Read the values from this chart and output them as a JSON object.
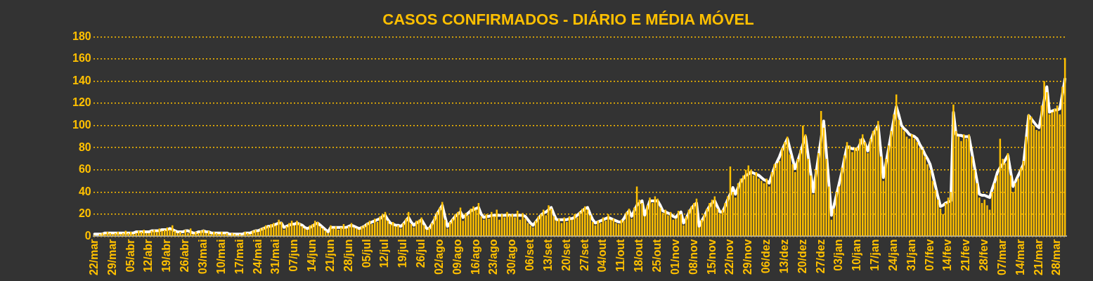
{
  "chart_data": {
    "type": "bar",
    "title": "CASOS CONFIRMADOS - DIÁRIO E MÉDIA MÓVEL",
    "categories": [
      "22/mar",
      null,
      null,
      null,
      null,
      null,
      null,
      "29/mar",
      null,
      null,
      null,
      null,
      null,
      null,
      "05/abr",
      null,
      null,
      null,
      null,
      null,
      null,
      "12/abr",
      null,
      null,
      null,
      null,
      null,
      null,
      "19/abr",
      null,
      null,
      null,
      null,
      null,
      null,
      "26/abr",
      null,
      null,
      null,
      null,
      null,
      null,
      "03/mai",
      null,
      null,
      null,
      null,
      null,
      null,
      "10/mai",
      null,
      null,
      null,
      null,
      null,
      null,
      "17/mai",
      null,
      null,
      null,
      null,
      null,
      null,
      "24/mai",
      null,
      null,
      null,
      null,
      null,
      null,
      "31/mai",
      null,
      null,
      null,
      null,
      null,
      null,
      "07/jun",
      null,
      null,
      null,
      null,
      null,
      null,
      "14/jun",
      null,
      null,
      null,
      null,
      null,
      null,
      "21/jun",
      null,
      null,
      null,
      null,
      null,
      null,
      "28/jun",
      null,
      null,
      null,
      null,
      null,
      null,
      "05/jul",
      null,
      null,
      null,
      null,
      null,
      null,
      "12/jul",
      null,
      null,
      null,
      null,
      null,
      null,
      "19/jul",
      null,
      null,
      null,
      null,
      null,
      null,
      "26/jul",
      null,
      null,
      null,
      null,
      null,
      null,
      "02/ago",
      null,
      null,
      null,
      null,
      null,
      null,
      "09/ago",
      null,
      null,
      null,
      null,
      null,
      null,
      "16/ago",
      null,
      null,
      null,
      null,
      null,
      null,
      "23/ago",
      null,
      null,
      null,
      null,
      null,
      null,
      "30/ago",
      null,
      null,
      null,
      null,
      null,
      null,
      "06/set",
      null,
      null,
      null,
      null,
      null,
      null,
      "13/set",
      null,
      null,
      null,
      null,
      null,
      null,
      "20/set",
      null,
      null,
      null,
      null,
      null,
      null,
      "27/set",
      null,
      null,
      null,
      null,
      null,
      null,
      "04/out",
      null,
      null,
      null,
      null,
      null,
      null,
      "11/out",
      null,
      null,
      null,
      null,
      null,
      null,
      "18/out",
      null,
      null,
      null,
      null,
      null,
      null,
      "25/out",
      null,
      null,
      null,
      null,
      null,
      null,
      "01/nov",
      null,
      null,
      null,
      null,
      null,
      null,
      "08/nov",
      null,
      null,
      null,
      null,
      null,
      null,
      "15/nov",
      null,
      null,
      null,
      null,
      null,
      null,
      "22/nov",
      null,
      null,
      null,
      null,
      null,
      null,
      "29/nov",
      null,
      null,
      null,
      null,
      null,
      null,
      "06/dez",
      null,
      null,
      null,
      null,
      null,
      null,
      "13/dez",
      null,
      null,
      null,
      null,
      null,
      null,
      "20/dez",
      null,
      null,
      null,
      null,
      null,
      null,
      "27/dez",
      null,
      null,
      null,
      null,
      null,
      null,
      "03/jan",
      null,
      null,
      null,
      null,
      null,
      null,
      "10/jan",
      null,
      null,
      null,
      null,
      null,
      null,
      "17/jan",
      null,
      null,
      null,
      null,
      null,
      null,
      "24/jan",
      null,
      null,
      null,
      null,
      null,
      null,
      "31/jan",
      null,
      null,
      null,
      null,
      null,
      null,
      "07/fev",
      null,
      null,
      null,
      null,
      null,
      null,
      "14/fev",
      null,
      null,
      null,
      null,
      null,
      null,
      "21/fev",
      null,
      null,
      null,
      null,
      null,
      null,
      "28/fev",
      null,
      null,
      null,
      null,
      null,
      null,
      "07/mar",
      null,
      null,
      null,
      null,
      null,
      null,
      "14/mar",
      null,
      null,
      null,
      null,
      null,
      null,
      "21/mar",
      null,
      null,
      null,
      null,
      null,
      null,
      "28/mar",
      null,
      null,
      null
    ],
    "series": [
      {
        "color": "#ffc000",
        "values": [
          1,
          0,
          2,
          3,
          2,
          4,
          3,
          2,
          3,
          4,
          2,
          3,
          5,
          3,
          4,
          2,
          3,
          5,
          4,
          6,
          3,
          3,
          5,
          6,
          4,
          7,
          5,
          6,
          8,
          6,
          10,
          5,
          3,
          4,
          2,
          6,
          3,
          7,
          2,
          4,
          3,
          5,
          6,
          3,
          5,
          2,
          4,
          3,
          2,
          4,
          2,
          3,
          1,
          3,
          2,
          1,
          2,
          1,
          4,
          3,
          2,
          5,
          6,
          4,
          7,
          8,
          10,
          9,
          11,
          12,
          10,
          15,
          13,
          6,
          9,
          12,
          14,
          10,
          14,
          12,
          9,
          7,
          6,
          10,
          11,
          14,
          13,
          9,
          7,
          5,
          3,
          10,
          7,
          9,
          6,
          8,
          11,
          7,
          9,
          12,
          8,
          7,
          6,
          9,
          10,
          12,
          14,
          11,
          16,
          13,
          18,
          20,
          22,
          14,
          11,
          13,
          9,
          10,
          7,
          12,
          16,
          22,
          11,
          8,
          14,
          15,
          17,
          10,
          6,
          8,
          12,
          18,
          22,
          26,
          31,
          15,
          7,
          13,
          16,
          20,
          22,
          26,
          14,
          21,
          19,
          25,
          27,
          24,
          30,
          18,
          15,
          20,
          16,
          22,
          18,
          24,
          15,
          20,
          17,
          22,
          19,
          20,
          17,
          23,
          15,
          21,
          16,
          12,
          10,
          8,
          14,
          18,
          20,
          24,
          19,
          28,
          25,
          18,
          14,
          16,
          12,
          17,
          13,
          18,
          15,
          20,
          17,
          22,
          25,
          27,
          24,
          19,
          13,
          10,
          14,
          12,
          17,
          14,
          20,
          15,
          16,
          12,
          11,
          15,
          14,
          22,
          25,
          16,
          26,
          45,
          33,
          30,
          18,
          28,
          35,
          30,
          36,
          34,
          26,
          21,
          24,
          19,
          22,
          15,
          16,
          23,
          20,
          10,
          18,
          24,
          27,
          30,
          34,
          8,
          15,
          20,
          25,
          30,
          33,
          36,
          25,
          20,
          24,
          30,
          36,
          63,
          40,
          35,
          48,
          52,
          55,
          60,
          64,
          60,
          55,
          58,
          52,
          50,
          48,
          52,
          45,
          58,
          65,
          66,
          68,
          80,
          85,
          90,
          74,
          65,
          58,
          70,
          78,
          100,
          92,
          70,
          55,
          38,
          60,
          75,
          113,
          98,
          70,
          45,
          15,
          25,
          40,
          45,
          62,
          73,
          85,
          82,
          76,
          80,
          80,
          88,
          92,
          85,
          75,
          88,
          95,
          98,
          104,
          72,
          50,
          70,
          82,
          95,
          110,
          128,
          105,
          98,
          95,
          90,
          88,
          92,
          88,
          85,
          80,
          78,
          72,
          65,
          60,
          50,
          42,
          33,
          25,
          20,
          30,
          35,
          40,
          119,
          95,
          90,
          86,
          92,
          88,
          92,
          72,
          60,
          48,
          35,
          30,
          33,
          28,
          24,
          40,
          48,
          55,
          88,
          70,
          66,
          75,
          55,
          40,
          48,
          52,
          62,
          68,
          90,
          110,
          108,
          100,
          96,
          95,
          118,
          140,
          130,
          110,
          112,
          115,
          118,
          110,
          135,
          161
        ]
      },
      {
        "type": "line",
        "color": "#ffffff",
        "values": [
          2,
          2,
          2,
          2,
          3,
          3,
          3,
          3,
          3,
          3,
          3,
          3,
          3,
          3,
          3,
          3,
          4,
          4,
          4,
          4,
          4,
          4,
          5,
          5,
          5,
          5,
          6,
          6,
          6,
          7,
          6,
          5,
          4,
          4,
          4,
          5,
          5,
          4,
          3,
          3,
          4,
          4,
          5,
          4,
          4,
          3,
          3,
          3,
          3,
          3,
          3,
          3,
          2,
          2,
          2,
          2,
          2,
          2,
          3,
          3,
          3,
          4,
          5,
          5,
          6,
          7,
          8,
          9,
          9,
          10,
          11,
          12,
          12,
          8,
          9,
          10,
          11,
          11,
          12,
          11,
          10,
          8,
          7,
          8,
          9,
          11,
          12,
          10,
          8,
          6,
          4,
          8,
          8,
          8,
          8,
          8,
          8,
          8,
          9,
          10,
          9,
          8,
          7,
          8,
          9,
          11,
          12,
          13,
          14,
          15,
          16,
          18,
          19,
          15,
          12,
          11,
          10,
          10,
          9,
          11,
          14,
          17,
          13,
          10,
          12,
          13,
          15,
          11,
          7,
          7,
          11,
          15,
          20,
          24,
          28,
          18,
          9,
          12,
          15,
          18,
          20,
          22,
          17,
          19,
          21,
          23,
          24,
          25,
          26,
          20,
          17,
          18,
          18,
          19,
          19,
          19,
          19,
          19,
          19,
          19,
          19,
          19,
          19,
          19,
          19,
          19,
          18,
          15,
          12,
          10,
          13,
          16,
          19,
          21,
          22,
          24,
          26,
          20,
          15,
          15,
          15,
          15,
          15,
          16,
          16,
          17,
          19,
          21,
          23,
          25,
          26,
          20,
          15,
          12,
          13,
          14,
          15,
          16,
          17,
          16,
          15,
          14,
          13,
          13,
          16,
          20,
          23,
          18,
          23,
          28,
          30,
          32,
          19,
          25,
          32,
          32,
          32,
          32,
          28,
          23,
          22,
          21,
          20,
          18,
          17,
          20,
          22,
          12,
          16,
          21,
          25,
          28,
          30,
          9,
          14,
          18,
          23,
          27,
          30,
          32,
          27,
          22,
          22,
          27,
          33,
          38,
          44,
          38,
          44,
          49,
          52,
          55,
          56,
          58,
          57,
          56,
          55,
          53,
          51,
          50,
          48,
          55,
          62,
          67,
          72,
          78,
          83,
          88,
          79,
          70,
          61,
          68,
          75,
          83,
          90,
          73,
          57,
          40,
          56,
          72,
          88,
          104,
          76,
          48,
          19,
          28,
          38,
          48,
          58,
          70,
          81,
          80,
          79,
          79,
          78,
          83,
          88,
          83,
          77,
          85,
          92,
          96,
          100,
          77,
          53,
          66,
          79,
          92,
          105,
          117,
          109,
          100,
          97,
          95,
          92,
          91,
          90,
          88,
          83,
          79,
          74,
          70,
          65,
          56,
          46,
          36,
          27,
          28,
          30,
          31,
          32,
          112,
          92,
          91,
          91,
          90,
          90,
          90,
          77,
          64,
          51,
          38,
          37,
          37,
          36,
          35,
          43,
          50,
          58,
          62,
          65,
          69,
          73,
          59,
          45,
          50,
          55,
          60,
          65,
          87,
          109,
          106,
          103,
          100,
          98,
          110,
          123,
          135,
          112,
          113,
          114,
          114,
          115,
          128,
          142
        ]
      }
    ],
    "ylim": [
      0,
      180
    ],
    "yticks": [
      0,
      20,
      40,
      60,
      80,
      100,
      120,
      140,
      160,
      180
    ],
    "grid": "y",
    "legend": false
  }
}
